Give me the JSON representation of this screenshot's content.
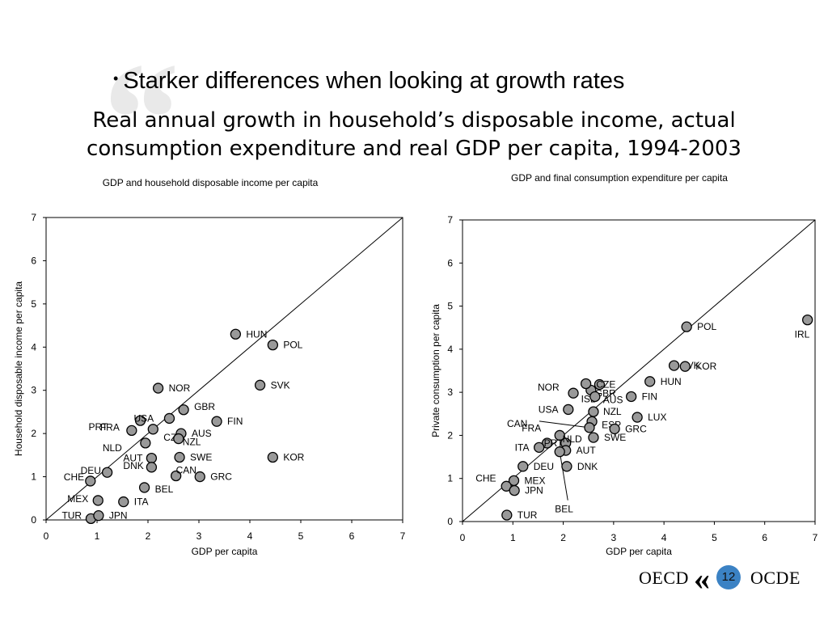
{
  "slide": {
    "bullet": "Starker differences when looking at growth rates",
    "subtitle_line1": "Real annual growth in household’s disposable income, actual",
    "subtitle_line2": "consumption expenditure and real GDP per capita, 1994-2003",
    "page_number": "12",
    "logo_left": "OECD",
    "logo_right": "OCDE"
  },
  "chart_data": [
    {
      "type": "scatter",
      "title": "GDP and household disposable income per capita",
      "xlabel": "GDP per capita",
      "ylabel": "Household disposable income per capita",
      "xlim": [
        0,
        7
      ],
      "ylim": [
        0,
        7
      ],
      "xticks": [
        "0",
        "1",
        "2",
        "3",
        "4",
        "5",
        "6",
        "7"
      ],
      "yticks": [
        "0",
        "1",
        "2",
        "3",
        "4",
        "5",
        "6",
        "7"
      ],
      "reference_line": "45-degree",
      "grid": false,
      "points": [
        {
          "label": "HUN",
          "x": 3.72,
          "y": 4.3
        },
        {
          "label": "POL",
          "x": 4.45,
          "y": 4.05
        },
        {
          "label": "SVK",
          "x": 4.2,
          "y": 3.12
        },
        {
          "label": "NOR",
          "x": 2.2,
          "y": 3.05
        },
        {
          "label": "PRT",
          "x": 1.85,
          "y": 2.3
        },
        {
          "label": "GBR",
          "x": 2.7,
          "y": 2.55
        },
        {
          "label": "USA",
          "x": 2.42,
          "y": 2.35
        },
        {
          "label": "CZE",
          "x": 2.1,
          "y": 2.1
        },
        {
          "label": "FIN",
          "x": 3.35,
          "y": 2.28
        },
        {
          "label": "FRA",
          "x": 1.68,
          "y": 2.07
        },
        {
          "label": "AUS",
          "x": 2.65,
          "y": 2.0
        },
        {
          "label": "NLD",
          "x": 1.95,
          "y": 1.78
        },
        {
          "label": "NZL",
          "x": 2.6,
          "y": 1.88
        },
        {
          "label": "DEU",
          "x": 1.2,
          "y": 1.1
        },
        {
          "label": "AUT",
          "x": 2.07,
          "y": 1.43
        },
        {
          "label": "SWE",
          "x": 2.62,
          "y": 1.45
        },
        {
          "label": "DNK",
          "x": 2.07,
          "y": 1.22
        },
        {
          "label": "KOR",
          "x": 4.45,
          "y": 1.45
        },
        {
          "label": "CAN",
          "x": 2.55,
          "y": 1.02
        },
        {
          "label": "GRC",
          "x": 3.02,
          "y": 1.0
        },
        {
          "label": "CHE",
          "x": 0.87,
          "y": 0.9
        },
        {
          "label": "BEL",
          "x": 1.93,
          "y": 0.75
        },
        {
          "label": "MEX",
          "x": 1.02,
          "y": 0.45
        },
        {
          "label": "ITA",
          "x": 1.52,
          "y": 0.42
        },
        {
          "label": "TUR",
          "x": 0.88,
          "y": 0.03
        },
        {
          "label": "JPN",
          "x": 1.03,
          "y": 0.1
        }
      ]
    },
    {
      "type": "scatter",
      "title": "GDP and final consumption expenditure per capita",
      "xlabel": "GDP per capita",
      "ylabel": "Private consumption per capita",
      "xlim": [
        0,
        7
      ],
      "ylim": [
        0,
        7
      ],
      "xticks": [
        "0",
        "1",
        "2",
        "3",
        "4",
        "5",
        "6",
        "7"
      ],
      "yticks": [
        "0",
        "1",
        "2",
        "3",
        "4",
        "5",
        "6",
        "7"
      ],
      "reference_line": "45-degree",
      "grid": false,
      "points": [
        {
          "label": "IRL",
          "x": 6.85,
          "y": 4.68
        },
        {
          "label": "POL",
          "x": 4.45,
          "y": 4.52
        },
        {
          "label": "SVK",
          "x": 4.2,
          "y": 3.62
        },
        {
          "label": "KOR",
          "x": 4.42,
          "y": 3.6
        },
        {
          "label": "HUN",
          "x": 3.72,
          "y": 3.25
        },
        {
          "label": "CZE",
          "x": 2.72,
          "y": 3.18
        },
        {
          "label": "GBR",
          "x": 2.55,
          "y": 3.05
        },
        {
          "label": "ISL",
          "x": 2.45,
          "y": 3.2
        },
        {
          "label": "NOR",
          "x": 2.2,
          "y": 2.98
        },
        {
          "label": "AUS",
          "x": 2.63,
          "y": 2.9
        },
        {
          "label": "FIN",
          "x": 3.35,
          "y": 2.9
        },
        {
          "label": "USA",
          "x": 2.1,
          "y": 2.6
        },
        {
          "label": "NZL",
          "x": 2.6,
          "y": 2.55
        },
        {
          "label": "LUX",
          "x": 3.47,
          "y": 2.42
        },
        {
          "label": "ESP",
          "x": 2.57,
          "y": 2.32
        },
        {
          "label": "CAN",
          "x": 2.52,
          "y": 2.18
        },
        {
          "label": "GRC",
          "x": 3.02,
          "y": 2.15
        },
        {
          "label": "SWE",
          "x": 2.6,
          "y": 1.95
        },
        {
          "label": "FRA",
          "x": 1.93,
          "y": 2.0
        },
        {
          "label": "NLD",
          "x": 2.05,
          "y": 1.82
        },
        {
          "label": "PRT",
          "x": 1.68,
          "y": 1.82
        },
        {
          "label": "ITA",
          "x": 1.52,
          "y": 1.72
        },
        {
          "label": "AUT",
          "x": 2.05,
          "y": 1.65
        },
        {
          "label": "DNK",
          "x": 2.07,
          "y": 1.28
        },
        {
          "label": "DEU",
          "x": 1.2,
          "y": 1.28
        },
        {
          "label": "MEX",
          "x": 1.02,
          "y": 0.95
        },
        {
          "label": "CHE",
          "x": 0.87,
          "y": 0.82
        },
        {
          "label": "JPN",
          "x": 1.03,
          "y": 0.72
        },
        {
          "label": "BEL",
          "x": 1.93,
          "y": 1.62
        },
        {
          "label": "TUR",
          "x": 0.88,
          "y": 0.15
        }
      ]
    }
  ]
}
